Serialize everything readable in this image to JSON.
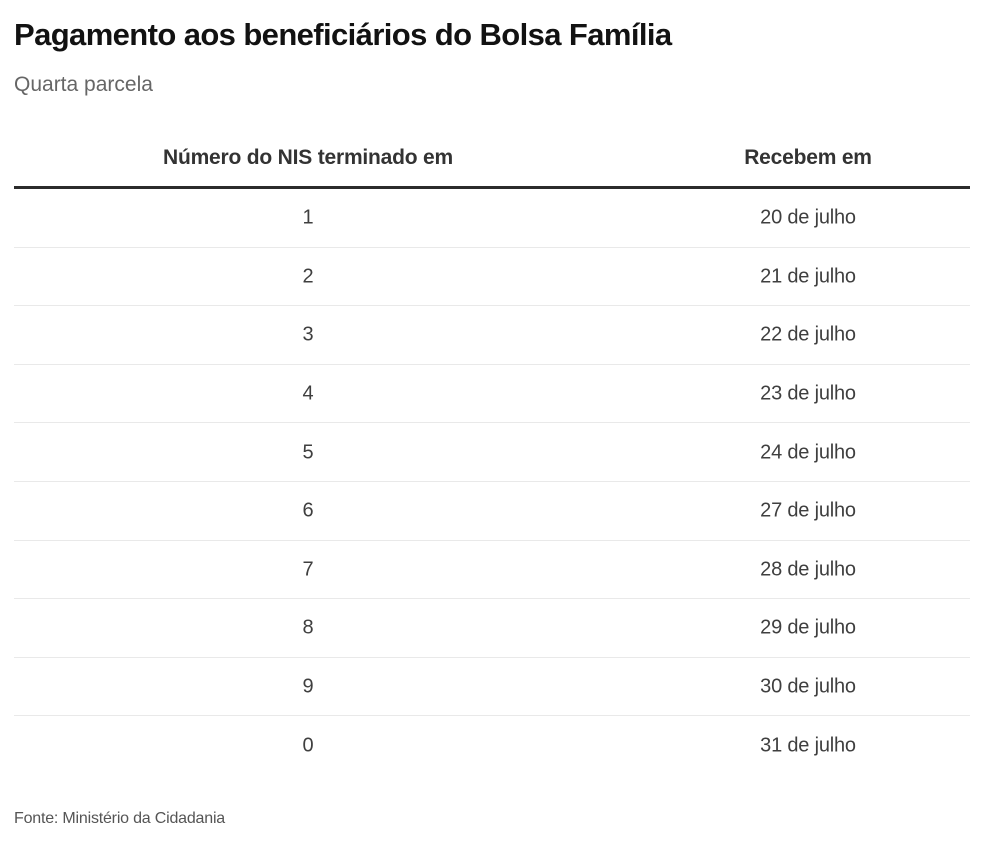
{
  "header": {
    "title": "Pagamento aos beneficiários do Bolsa Família",
    "subtitle": "Quarta parcela"
  },
  "footer": {
    "source": "Fonte: Ministério da Cidadania"
  },
  "chart_data": {
    "type": "table",
    "title": "Pagamento aos beneficiários do Bolsa Família",
    "subtitle": "Quarta parcela",
    "columns": [
      "Número do NIS terminado em",
      "Recebem em"
    ],
    "rows": [
      [
        "1",
        "20 de julho"
      ],
      [
        "2",
        "21 de julho"
      ],
      [
        "3",
        "22 de julho"
      ],
      [
        "4",
        "23 de julho"
      ],
      [
        "5",
        "24 de julho"
      ],
      [
        "6",
        "27 de julho"
      ],
      [
        "7",
        "28 de julho"
      ],
      [
        "8",
        "29 de julho"
      ],
      [
        "9",
        "30 de julho"
      ],
      [
        "0",
        "31 de julho"
      ]
    ],
    "source": "Fonte: Ministério da Cidadania"
  },
  "colors": {
    "background": "#ffffff",
    "title_text": "#121212",
    "subtitle_text": "#666666",
    "column_header_text": "#333333",
    "cell_text": "#3f3f3f",
    "header_rule": "#2b2b2b",
    "row_divider": "#e9e9e9",
    "source_text": "#555555"
  }
}
